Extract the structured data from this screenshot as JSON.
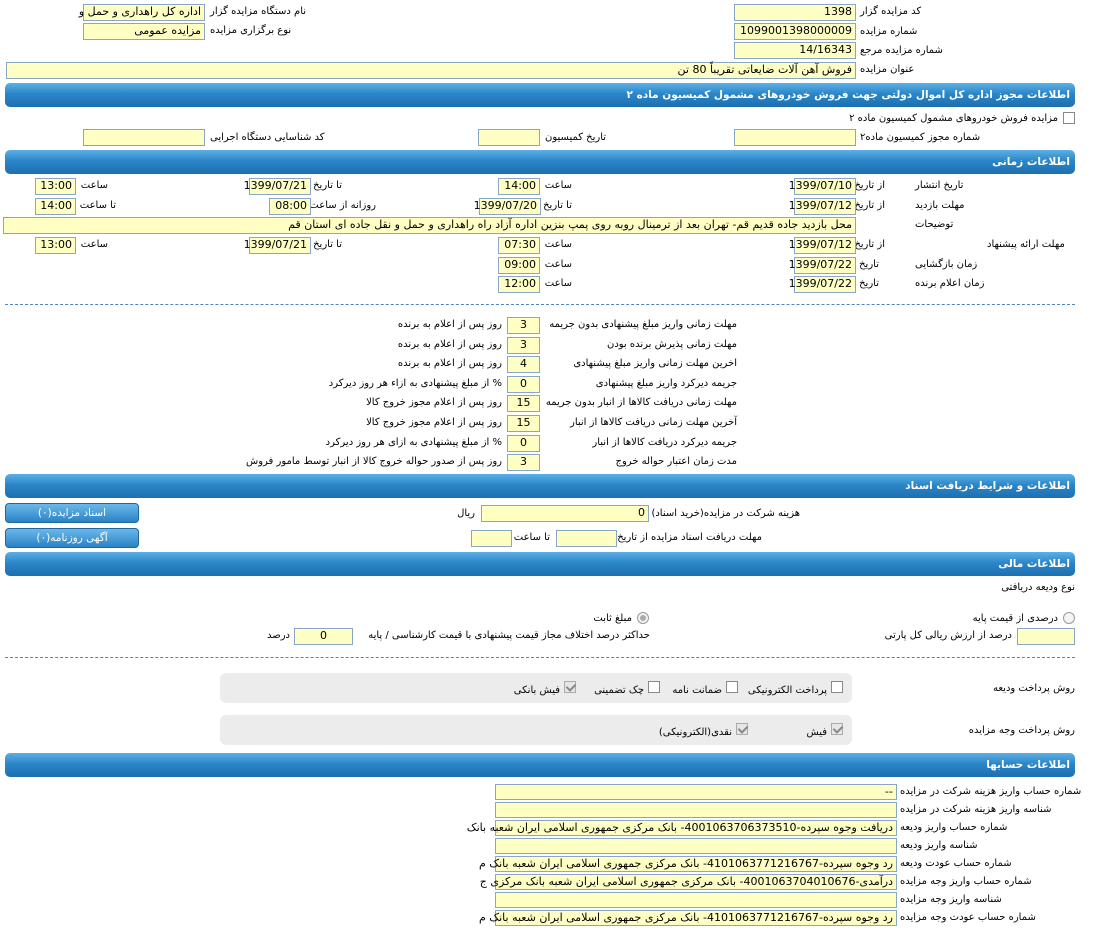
{
  "top": [
    {
      "label": "کد مزایده گزار",
      "value": "1398"
    },
    {
      "label": "شماره مزایده",
      "value": "1099001398000009"
    },
    {
      "label": "شماره مزایده مرجع",
      "value": "14/16343"
    },
    {
      "label": "عنوان مزایده",
      "value": "فروش آهن آلات ضایعاتی تقریباً 80 تن"
    },
    {
      "label": "نام دستگاه مزایده گزار",
      "value": "اداره کل راهداری و حمل و"
    },
    {
      "label": "نوع برگزاری مزایده",
      "value": "مزایده عمومی"
    }
  ],
  "sections": [
    "اطلاعات مجوز اداره کل اموال دولتی جهت فروش خودروهای مشمول کمیسیون ماده ۲",
    "اطلاعات زمانی",
    "اطلاعات و شرایط دریافت اسناد",
    "اطلاعات مالی",
    "اطلاعات حسابها"
  ],
  "commission": {
    "checkbox_label": "مزایده فروش خودروهای مشمول کمیسیون ماده ۲",
    "fields": [
      {
        "label": "شماره مجوز کمیسیون ماده۲"
      },
      {
        "label": "تاریخ کمیسیون"
      },
      {
        "label": "کد شناسایی دستگاه اجرایی"
      }
    ]
  },
  "timing": [
    {
      "label": "تاریخ انتشار",
      "items": [
        {
          "label": "از تاریخ",
          "value": "1399/07/10"
        },
        {
          "label": "ساعت",
          "value": "14:00"
        },
        {
          "label": "تا تاریخ",
          "value": "1399/07/21"
        },
        {
          "label": "ساعت",
          "value": "13:00"
        }
      ]
    },
    {
      "label": "مهلت بازدید",
      "items": [
        {
          "label": "از تاریخ",
          "value": "1399/07/12"
        },
        {
          "label": "تا تاریخ",
          "value": "1399/07/20"
        },
        {
          "label": "روزانه از ساعت",
          "value": "08:00"
        },
        {
          "label": "تا ساعت",
          "value": "14:00"
        }
      ]
    },
    {
      "label": "توضیحات",
      "items": [
        {
          "value": "محل بازدید جاده قدیم قم- تهران بعد از ترمینال روبه روی پمپ بنزین اداره آزاد راه راهداری و حمل و نقل جاده ای استان قم"
        }
      ]
    },
    {
      "label": "مهلت ارائه پیشنهاد",
      "items": [
        {
          "label": "از تاریخ",
          "value": "1399/07/12"
        },
        {
          "label": "ساعت",
          "value": "07:30"
        },
        {
          "label": "تا تاریخ",
          "value": "1399/07/21"
        },
        {
          "label": "ساعت",
          "value": "13:00"
        }
      ]
    },
    {
      "label": "زمان بازگشایی",
      "items": [
        {
          "label": "تاریخ",
          "value": "1399/07/22"
        },
        {
          "label": "ساعت",
          "value": "09:00"
        }
      ]
    },
    {
      "label": "زمان اعلام برنده",
      "items": [
        {
          "label": "تاریخ",
          "value": "1399/07/22"
        },
        {
          "label": "ساعت",
          "value": "12:00"
        }
      ]
    }
  ],
  "rules": [
    {
      "label": "مهلت زمانی واریز مبلغ پیشنهادی بدون جریمه",
      "value": 3,
      "suffix": "روز پس از اعلام به برنده"
    },
    {
      "label": "مهلت زمانی پذیرش برنده بودن",
      "value": 3,
      "suffix": "روز پس از اعلام به برنده"
    },
    {
      "label": "اخرین مهلت زمانی واریز مبلغ پیشنهادی",
      "value": 4,
      "suffix": "روز پس از اعلام به برنده"
    },
    {
      "label": "جریمه دیرکرد واریز مبلغ پیشنهادی",
      "value": 0,
      "suffix": "% از مبلغ پیشنهادی به ازاء هر روز دیرکرد"
    },
    {
      "label": "مهلت زمانی دریافت کالاها از انبار بدون جریمه",
      "value": 15,
      "suffix": "روز پس از اعلام مجوز خروج کالا"
    },
    {
      "label": "آخرین مهلت زمانی دریافت کالاها از انبار",
      "value": 15,
      "suffix": "روز پس از اعلام مجوز خروج کالا"
    },
    {
      "label": "جریمه دیرکرد دریافت کالاها از انبار",
      "value": 0,
      "suffix": "% از مبلغ پیشنهادی به ازای هر روز دیرکرد"
    },
    {
      "label": "مدت زمان اعتبار حواله خروج",
      "value": 3,
      "suffix": "روز پس از صدور حواله خروج کالا از انبار توسط مامور فروش"
    }
  ],
  "documents": {
    "buttons": [
      "اسناد مزایده(۰)",
      "آگهی روزنامه(۰)"
    ],
    "fee_label": "هزینه شرکت در مزایده(خرید اسناد)",
    "fee": "0",
    "fee_unit": "ریال",
    "deadline_label": "مهلت دریافت اسناد مزایده از تاریخ",
    "until_label": "تا ساعت"
  },
  "finance": {
    "deposit_type_label": "نوع ودیعه دریافتی",
    "options": [
      {
        "label": "درصدی از قیمت پایه",
        "selected": false
      },
      {
        "label": "مبلغ ثابت",
        "selected": true
      }
    ],
    "percent_label": "درصد از ارزش ریالی کل پارتی",
    "max_diff_label": "حداکثر درصد اختلاف مجاز قیمت پیشنهادی با قیمت کارشناسی / پایه",
    "max_diff": "0",
    "max_diff_unit": "درصد",
    "deposit_payment": {
      "label": "روش پرداخت ودیعه",
      "options": [
        {
          "label": "پرداخت الکترونیکی",
          "checked": false
        },
        {
          "label": "ضمانت نامه",
          "checked": false
        },
        {
          "label": "چک تضمینی",
          "checked": false
        },
        {
          "label": "فیش بانکی",
          "checked": true
        }
      ]
    },
    "auction_payment": {
      "label": "روش پرداخت وجه مزایده",
      "options": [
        {
          "label": "فیش",
          "checked": true
        },
        {
          "label": "نقدی(الکترونیکی)",
          "checked": true
        }
      ]
    }
  },
  "accounts": [
    {
      "label": "شماره حساب واریز هزینه شرکت در مزایده",
      "value": "--"
    },
    {
      "label": "شناسه واریز هزینه شرکت در مزایده"
    },
    {
      "label": "شماره حساب واریز ودیعه",
      "value": "دریافت وجوه سپرده-4001063706373510- بانک مرکزی جمهوری اسلامی ایران شعبه بانک"
    },
    {
      "label": "شناسه واریز ودیعه"
    },
    {
      "label": "شماره حساب عودت ودیعه",
      "value": "رد وجوه سپرده-4101063771216767- بانک مرکزی جمهوری اسلامی ایران شعبه بانک م"
    },
    {
      "label": "شماره حساب واریز وجه مزایده",
      "value": "درآمدی-4001063704010676- بانک مرکزی جمهوری اسلامی ایران شعبه بانک مرکزی ج"
    },
    {
      "label": "شناسه واریز وجه مزایده"
    },
    {
      "label": "شماره حساب عودت وجه مزایده",
      "value": "رد وجوه سپرده-4101063771216767- بانک مرکزی جمهوری اسلامی ایران شعبه بانک م"
    }
  ]
}
